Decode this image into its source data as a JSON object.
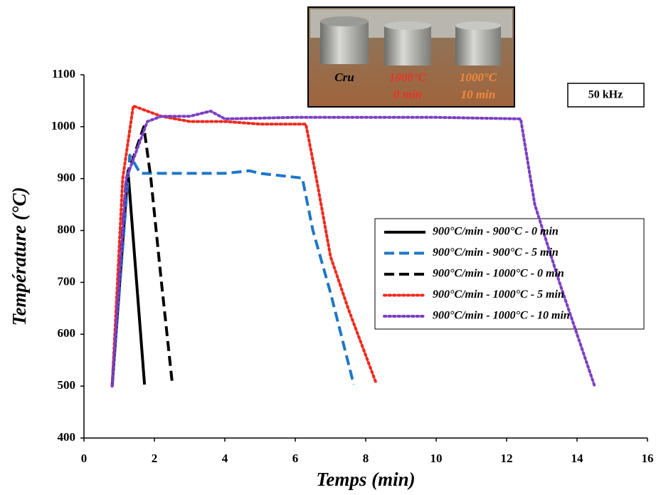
{
  "chart_data": {
    "type": "line",
    "x_label": "Temps (min)",
    "y_label": "Température (°C)",
    "xlim": [
      0,
      16
    ],
    "xticks": [
      0,
      2,
      4,
      6,
      8,
      10,
      12,
      14,
      16
    ],
    "ylim": [
      400,
      1100
    ],
    "yticks": [
      400,
      500,
      600,
      700,
      800,
      900,
      1000,
      1100
    ],
    "grid": false,
    "legend": "center right",
    "annotation": "50 kHz",
    "photo_labels": [
      {
        "lines": [
          "Cru"
        ],
        "color": "#000000"
      },
      {
        "lines": [
          "1000°C",
          "0 min"
        ],
        "color": "#e8332a"
      },
      {
        "lines": [
          "1000°C",
          "10 min"
        ],
        "color": "#f08a3c"
      }
    ],
    "series": [
      {
        "name": "900°C/min - 900°C - 0 min",
        "color": "#000000",
        "dash": "solid",
        "x": [
          0.8,
          1.25,
          1.72
        ],
        "values": [
          500,
          915,
          503
        ]
      },
      {
        "name": "900°C/min - 900°C - 5 min",
        "color": "#1f77c8",
        "dash": "dashed",
        "x": [
          0.8,
          1.3,
          1.6,
          3,
          4,
          4.7,
          5,
          6.2,
          6.5,
          7,
          7.66
        ],
        "values": [
          500,
          945,
          910,
          910,
          910,
          915,
          910,
          901,
          800,
          680,
          503
        ]
      },
      {
        "name": "900°C/min - 1000°C - 0 min",
        "color": "#000000",
        "dash": "dashed",
        "x": [
          0.8,
          1.2,
          1.7,
          1.9,
          2.2,
          2.5
        ],
        "values": [
          500,
          900,
          1000,
          900,
          700,
          510
        ]
      },
      {
        "name": "900°C/min - 1000°C - 5 min",
        "color": "#f02a1e",
        "dash": "dotted",
        "x": [
          0.8,
          1.1,
          1.4,
          1.8,
          2.2,
          3,
          4,
          5,
          6.3,
          6.6,
          7,
          7.5,
          8.3
        ],
        "values": [
          500,
          900,
          1040,
          1030,
          1020,
          1010,
          1010,
          1005,
          1005,
          900,
          750,
          650,
          505
        ]
      },
      {
        "name": "900°C/min - 1000°C - 10 min",
        "color": "#7b3fc4",
        "dash": "dotted",
        "x": [
          0.8,
          1.2,
          1.8,
          2.2,
          3,
          3.6,
          4,
          6,
          10,
          12.4,
          12.8,
          13.5,
          14.5
        ],
        "values": [
          500,
          900,
          1010,
          1020,
          1020,
          1030,
          1015,
          1018,
          1018,
          1015,
          850,
          700,
          500
        ]
      }
    ]
  }
}
